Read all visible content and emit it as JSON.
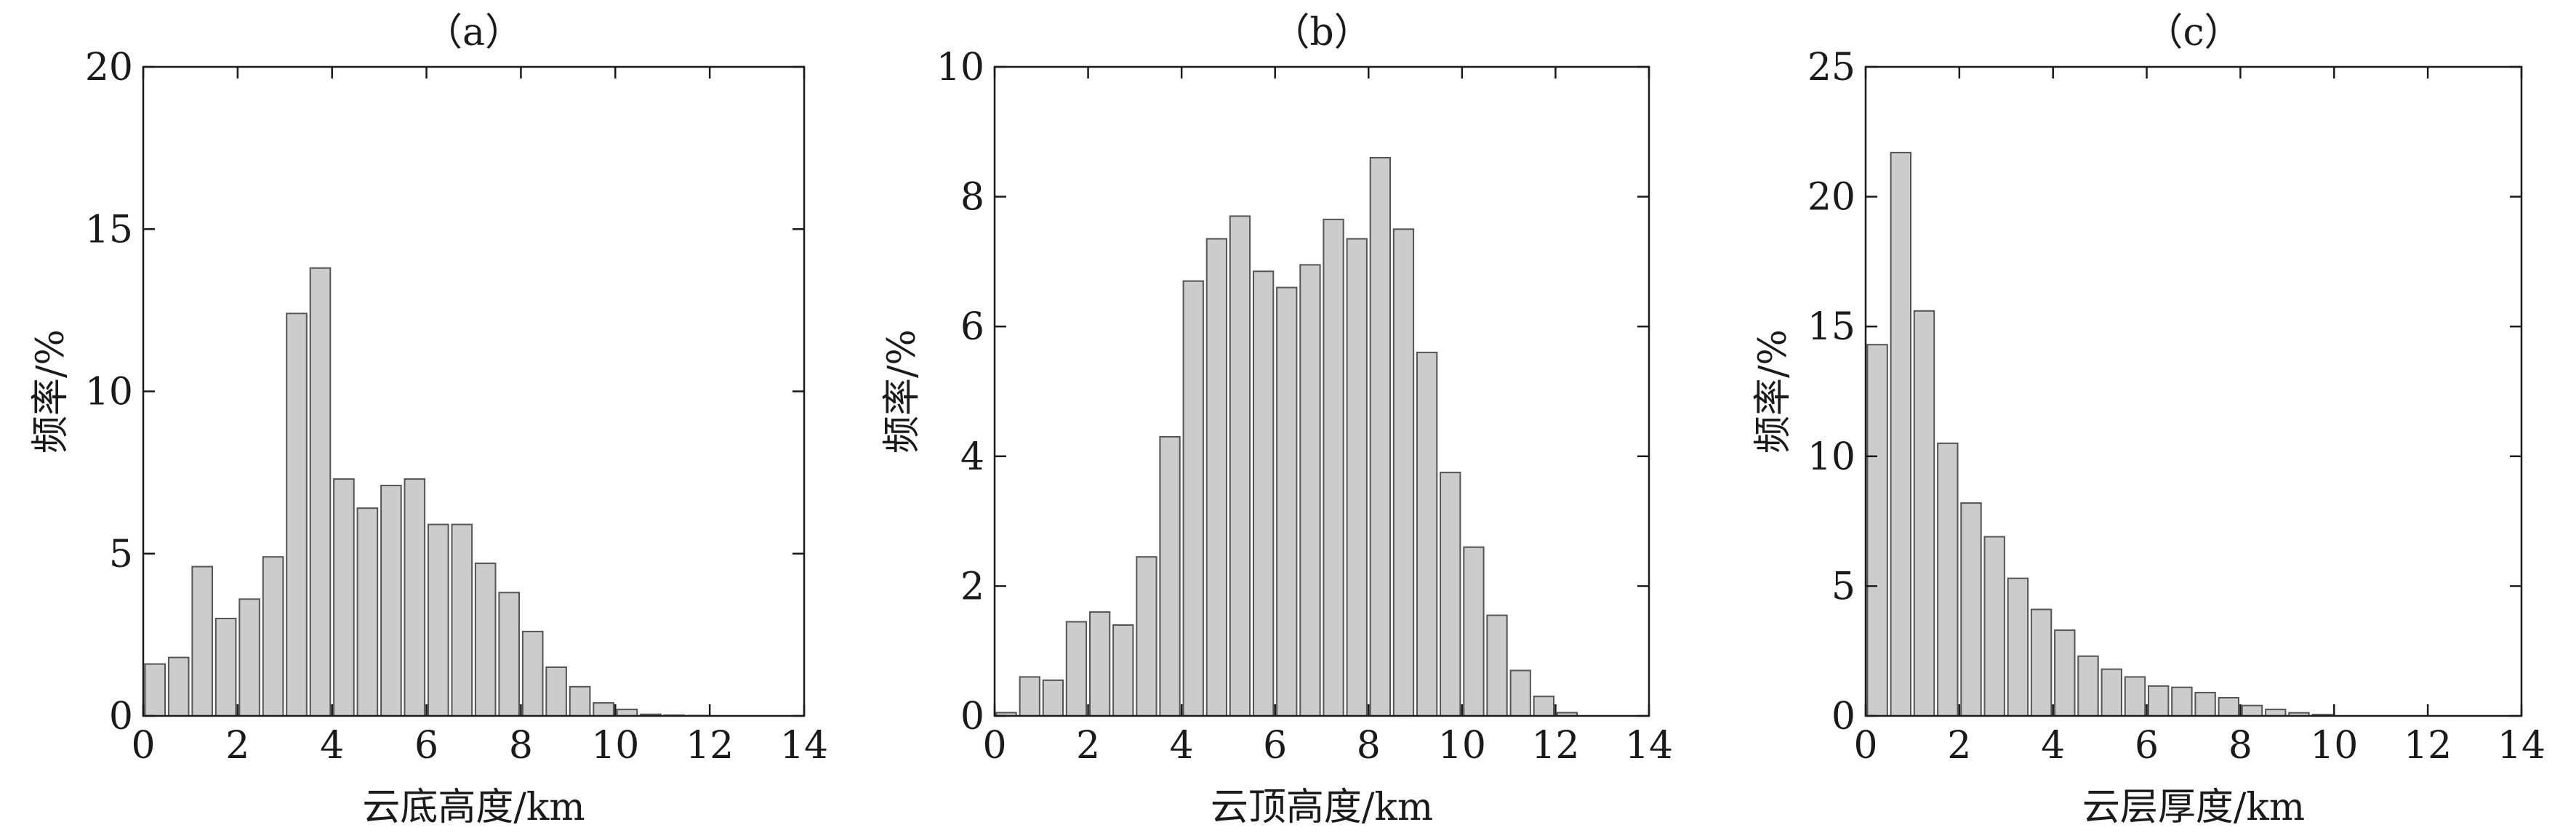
{
  "chart_data": [
    {
      "type": "bar",
      "title": "（a）",
      "xlabel": "云底高度/km",
      "ylabel": "频率/%",
      "xlim": [
        0,
        14
      ],
      "ylim": [
        0,
        20
      ],
      "xticks": [
        0,
        2,
        4,
        6,
        8,
        10,
        12,
        14
      ],
      "yticks": [
        0,
        5,
        10,
        15,
        20
      ],
      "bin_width": 0.5,
      "x": [
        0.25,
        0.75,
        1.25,
        1.75,
        2.25,
        2.75,
        3.25,
        3.75,
        4.25,
        4.75,
        5.25,
        5.75,
        6.25,
        6.75,
        7.25,
        7.75,
        8.25,
        8.75,
        9.25,
        9.75,
        10.25,
        10.75,
        11.25,
        11.75
      ],
      "values": [
        1.6,
        1.8,
        4.6,
        3.0,
        3.6,
        4.9,
        12.4,
        13.8,
        7.3,
        6.4,
        7.1,
        7.3,
        5.9,
        5.9,
        4.7,
        3.8,
        2.6,
        1.5,
        0.9,
        0.4,
        0.2,
        0.05,
        0.02,
        0.01
      ],
      "grid": false,
      "color": "#cccccc"
    },
    {
      "type": "bar",
      "title": "（b）",
      "xlabel": "云顶高度/km",
      "ylabel": "频率/%",
      "xlim": [
        0,
        14
      ],
      "ylim": [
        0,
        10
      ],
      "xticks": [
        0,
        2,
        4,
        6,
        8,
        10,
        12,
        14
      ],
      "yticks": [
        0,
        2,
        4,
        6,
        8,
        10
      ],
      "bin_width": 0.5,
      "x": [
        0.25,
        0.75,
        1.25,
        1.75,
        2.25,
        2.75,
        3.25,
        3.75,
        4.25,
        4.75,
        5.25,
        5.75,
        6.25,
        6.75,
        7.25,
        7.75,
        8.25,
        8.75,
        9.25,
        9.75,
        10.25,
        10.75,
        11.25,
        11.75,
        12.25
      ],
      "values": [
        0.05,
        0.6,
        0.55,
        1.45,
        1.6,
        1.4,
        2.45,
        4.3,
        6.7,
        7.35,
        7.7,
        6.85,
        6.6,
        6.95,
        7.65,
        7.35,
        8.6,
        7.5,
        5.6,
        3.75,
        2.6,
        1.55,
        0.7,
        0.3,
        0.05
      ],
      "grid": false,
      "color": "#cccccc"
    },
    {
      "type": "bar",
      "title": "（c）",
      "xlabel": "云层厚度/km",
      "ylabel": "频率/%",
      "xlim": [
        0,
        14
      ],
      "ylim": [
        0,
        25
      ],
      "xticks": [
        0,
        2,
        4,
        6,
        8,
        10,
        12,
        14
      ],
      "yticks": [
        0,
        5,
        10,
        15,
        20,
        25
      ],
      "bin_width": 0.5,
      "x": [
        0.25,
        0.75,
        1.25,
        1.75,
        2.25,
        2.75,
        3.25,
        3.75,
        4.25,
        4.75,
        5.25,
        5.75,
        6.25,
        6.75,
        7.25,
        7.75,
        8.25,
        8.75,
        9.25,
        9.75
      ],
      "values": [
        14.3,
        21.7,
        15.6,
        10.5,
        8.2,
        6.9,
        5.3,
        4.1,
        3.3,
        2.3,
        1.8,
        1.5,
        1.15,
        1.1,
        0.9,
        0.7,
        0.4,
        0.25,
        0.12,
        0.05
      ],
      "grid": false,
      "color": "#cccccc"
    }
  ]
}
